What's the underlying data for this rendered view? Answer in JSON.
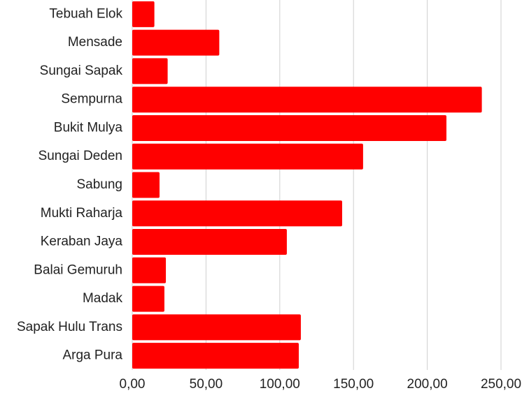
{
  "chart_data": {
    "type": "hbar",
    "categories": [
      "Tebuah Elok",
      "Mensade",
      "Sungai Sapak",
      "Sempurna",
      "Bukit Mulya",
      "Sungai Deden",
      "Sabung",
      "Mukti Raharja",
      "Keraban Jaya",
      "Balai Gemuruh",
      "Madak",
      "Sapak Hulu Trans",
      "Arga Pura"
    ],
    "values": [
      15,
      59,
      24,
      237,
      213,
      156.5,
      18.5,
      142.3,
      104.8,
      22.8,
      21.8,
      114.3,
      112.9
    ],
    "color": "#ff0000",
    "xlim": [
      0,
      250
    ],
    "xticks": [
      {
        "value": 0,
        "label": "0,00"
      },
      {
        "value": 50,
        "label": "50,00"
      },
      {
        "value": 100,
        "label": "100,00"
      },
      {
        "value": 150,
        "label": "150,00"
      },
      {
        "value": 200,
        "label": "200,00"
      },
      {
        "value": 250,
        "label": "250,00"
      }
    ],
    "grid": true
  }
}
